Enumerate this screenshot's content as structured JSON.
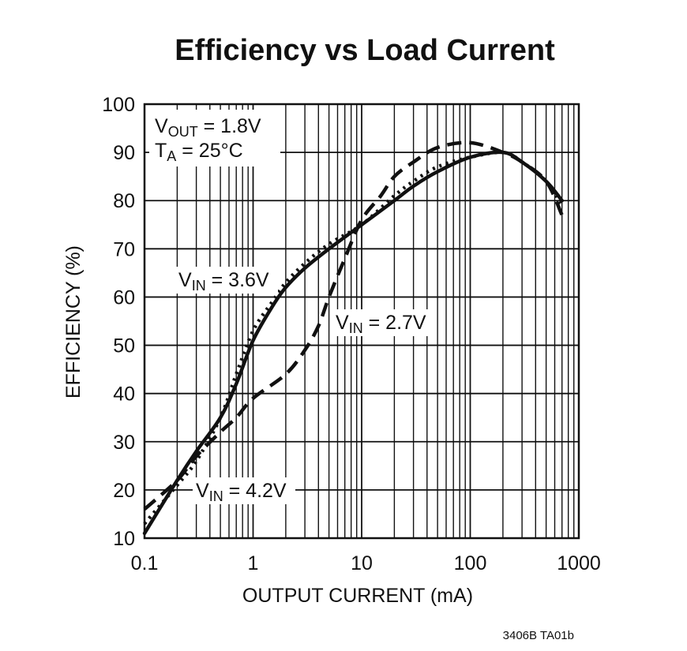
{
  "chart_data": {
    "type": "line",
    "title": "Efficiency vs Load Current",
    "xlabel": "OUTPUT CURRENT (mA)",
    "ylabel": "EFFICIENCY (%)",
    "xscale": "log",
    "xlim": [
      0.1,
      1000
    ],
    "ylim": [
      10,
      100
    ],
    "grid": true,
    "x_tick_labels": [
      "0.1",
      "1",
      "10",
      "100",
      "1000"
    ],
    "x_ticks": [
      0.1,
      1,
      10,
      100,
      1000
    ],
    "y_ticks": [
      10,
      20,
      30,
      40,
      50,
      60,
      70,
      80,
      90,
      100
    ],
    "conditions": {
      "vout": {
        "base": "V",
        "sub": "OUT",
        "rest": " = 1.8V"
      },
      "ta": {
        "base": "T",
        "sub": "A",
        "rest": " = 25°C"
      }
    },
    "series": [
      {
        "name": "VIN = 3.6V",
        "style": "solid",
        "label": {
          "base": "V",
          "sub": "IN",
          "rest": " = 3.6V"
        },
        "x": [
          0.1,
          0.2,
          0.3,
          0.5,
          0.7,
          1,
          1.5,
          2,
          3,
          5,
          10,
          20,
          30,
          50,
          100,
          200,
          300,
          500,
          700
        ],
        "y": [
          11,
          22,
          28,
          35,
          42,
          51,
          58,
          62,
          66,
          70,
          75,
          80,
          83,
          86,
          89,
          90,
          88,
          84,
          80
        ]
      },
      {
        "name": "VIN = 2.7V",
        "style": "dashed",
        "label": {
          "base": "V",
          "sub": "IN",
          "rest": " = 2.7V"
        },
        "x": [
          0.1,
          0.2,
          0.3,
          0.5,
          0.7,
          1,
          2,
          3,
          4,
          5,
          7,
          10,
          15,
          20,
          30,
          50,
          100,
          200,
          300,
          500,
          700
        ],
        "y": [
          16,
          22,
          27,
          32,
          35,
          39,
          44,
          49,
          54,
          60,
          68,
          76,
          81,
          85,
          88,
          91,
          92,
          90,
          88,
          84,
          77
        ]
      },
      {
        "name": "VIN = 4.2V",
        "style": "dotted",
        "label": {
          "base": "V",
          "sub": "IN",
          "rest": " = 4.2V"
        },
        "x": [
          0.1,
          0.2,
          0.3,
          0.5,
          0.7,
          1,
          1.5,
          2,
          3,
          5,
          10,
          20,
          30,
          50,
          100,
          200,
          300,
          500,
          700
        ],
        "y": [
          13,
          21,
          26,
          35,
          44,
          53,
          59,
          63,
          67,
          71,
          75,
          81,
          84,
          87,
          89,
          90,
          88,
          84,
          79
        ]
      }
    ]
  },
  "figure_code": "3406B TA01b"
}
